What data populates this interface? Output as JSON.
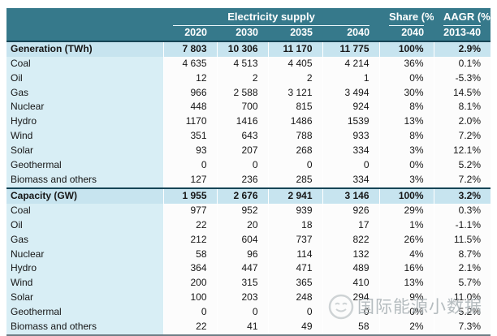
{
  "colors": {
    "header": "#36798B",
    "sectionRow": "#C7E4EF",
    "labelCell": "#D8EEF5",
    "darkBorder": "#164556",
    "bottomBorder": "#6E7E86"
  },
  "chart_data": {
    "type": "table",
    "column_groups": [
      {
        "label": "Electricity supply",
        "span": 4
      },
      {
        "label": "Share (%)",
        "span": 1
      },
      {
        "label": "AAGR (%)",
        "span": 1
      }
    ],
    "columns": [
      "2020",
      "2030",
      "2035",
      "2040",
      "2040",
      "2013-40"
    ],
    "sections": [
      {
        "title": "Generation (TWh)",
        "totals": [
          "7 803",
          "10 306",
          "11 170",
          "11 775",
          "100%",
          "2.9%"
        ],
        "rows": [
          {
            "label": "Coal",
            "values": [
              "4 635",
              "4 513",
              "4 405",
              "4 214",
              "36%",
              "0.1%"
            ]
          },
          {
            "label": "Oil",
            "values": [
              "12",
              "2",
              "2",
              "1",
              "0%",
              "-5.3%"
            ]
          },
          {
            "label": "Gas",
            "values": [
              "966",
              "2 588",
              "3 121",
              "3 494",
              "30%",
              "14.5%"
            ]
          },
          {
            "label": "Nuclear",
            "values": [
              "448",
              "700",
              "815",
              "924",
              "8%",
              "8.1%"
            ]
          },
          {
            "label": "Hydro",
            "values": [
              "1170",
              "1416",
              "1486",
              "1539",
              "13%",
              "2.0%"
            ]
          },
          {
            "label": "Wind",
            "values": [
              "351",
              "643",
              "788",
              "933",
              "8%",
              "7.2%"
            ]
          },
          {
            "label": "Solar",
            "values": [
              "93",
              "207",
              "268",
              "334",
              "3%",
              "12.1%"
            ]
          },
          {
            "label": "Geothermal",
            "values": [
              "0",
              "0",
              "0",
              "0",
              "0%",
              "5.2%"
            ]
          },
          {
            "label": "Biomass and others",
            "values": [
              "127",
              "236",
              "285",
              "334",
              "3%",
              "7.2%"
            ]
          }
        ]
      },
      {
        "title": "Capacity (GW)",
        "totals": [
          "1 955",
          "2 676",
          "2 941",
          "3 146",
          "100%",
          "3.2%"
        ],
        "rows": [
          {
            "label": "Coal",
            "values": [
              "977",
              "952",
              "939",
              "926",
              "29%",
              "0.3%"
            ]
          },
          {
            "label": "Oil",
            "values": [
              "22",
              "20",
              "18",
              "17",
              "1%",
              "-1.1%"
            ]
          },
          {
            "label": "Gas",
            "values": [
              "212",
              "604",
              "737",
              "822",
              "26%",
              "11.5%"
            ]
          },
          {
            "label": "Nuclear",
            "values": [
              "58",
              "96",
              "114",
              "132",
              "4%",
              "8.7%"
            ]
          },
          {
            "label": "Hydro",
            "values": [
              "364",
              "447",
              "471",
              "489",
              "16%",
              "2.1%"
            ]
          },
          {
            "label": "Wind",
            "values": [
              "200",
              "315",
              "365",
              "410",
              "13%",
              "5.7%"
            ]
          },
          {
            "label": "Solar",
            "values": [
              "100",
              "203",
              "248",
              "294",
              "9%",
              "11.0%"
            ]
          },
          {
            "label": "Geothermal",
            "values": [
              "0",
              "0",
              "0",
              "0",
              "0%",
              "5.2%"
            ]
          },
          {
            "label": "Biomass and others",
            "values": [
              "22",
              "41",
              "49",
              "58",
              "2%",
              "7.3%"
            ]
          }
        ]
      }
    ]
  },
  "watermark": {
    "text": "国际能源小数据",
    "logo": "smiley-face-logo"
  }
}
